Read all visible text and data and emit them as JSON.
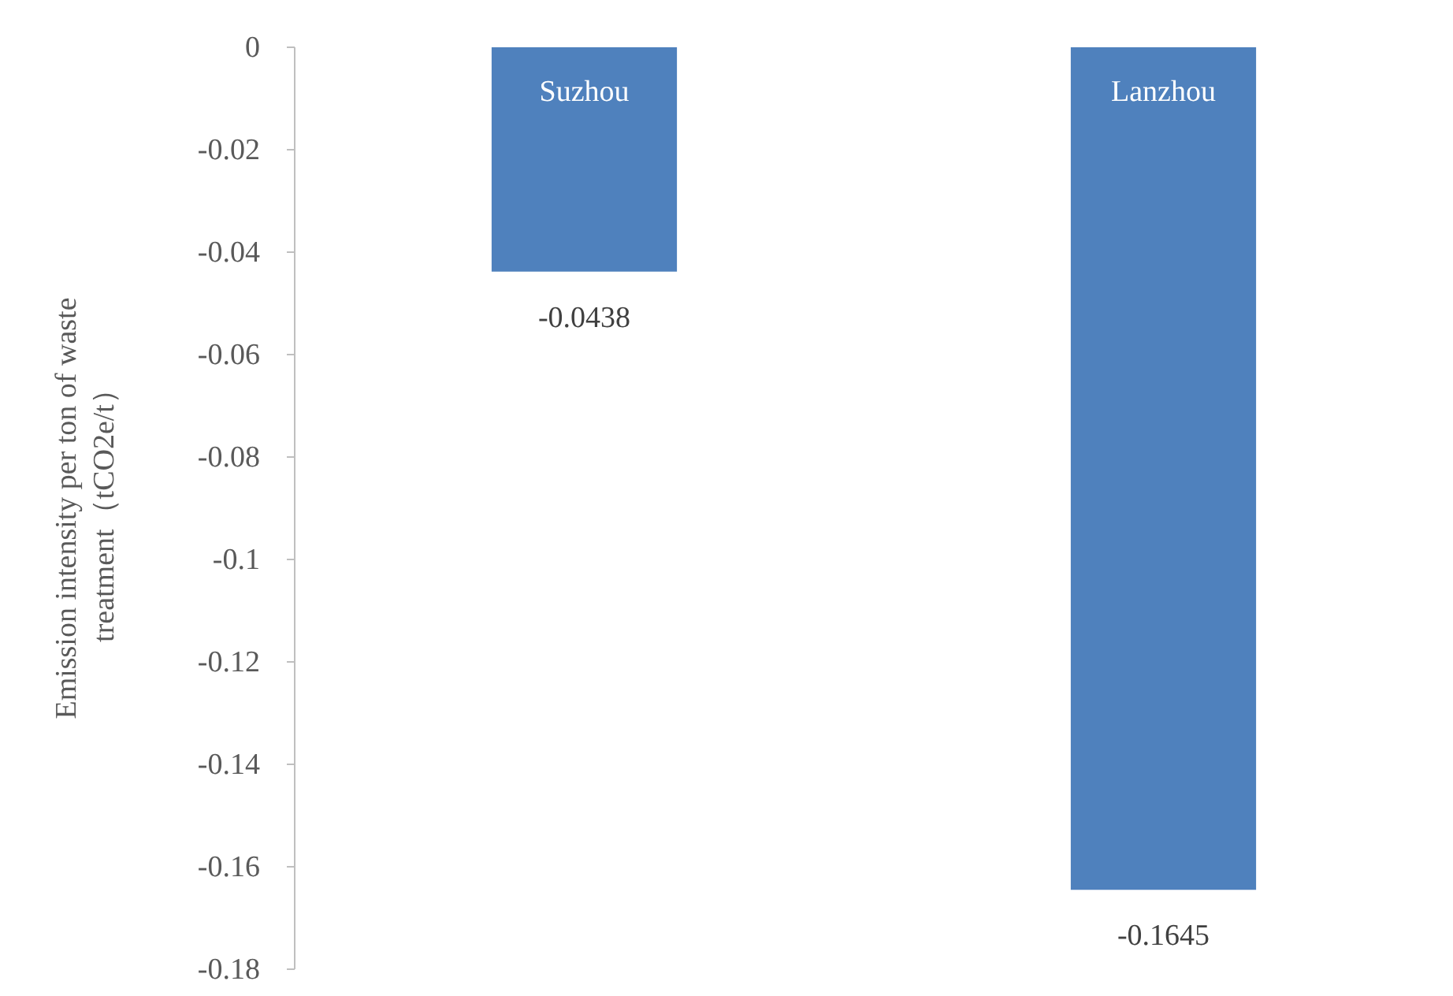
{
  "chart_data": {
    "type": "bar",
    "ylabel": "Emission intensity per ton of waste treatment（tCO2e/t）",
    "categories": [
      "Suzhou",
      "Lanzhou"
    ],
    "values": [
      -0.0438,
      -0.1645
    ],
    "color": "#4f81bd",
    "data_labels": true,
    "ylim": [
      -0.18,
      0
    ],
    "yticks": [
      0,
      -0.02,
      -0.04,
      -0.06,
      -0.08,
      -0.1,
      -0.12,
      -0.14,
      -0.16,
      -0.18
    ]
  }
}
